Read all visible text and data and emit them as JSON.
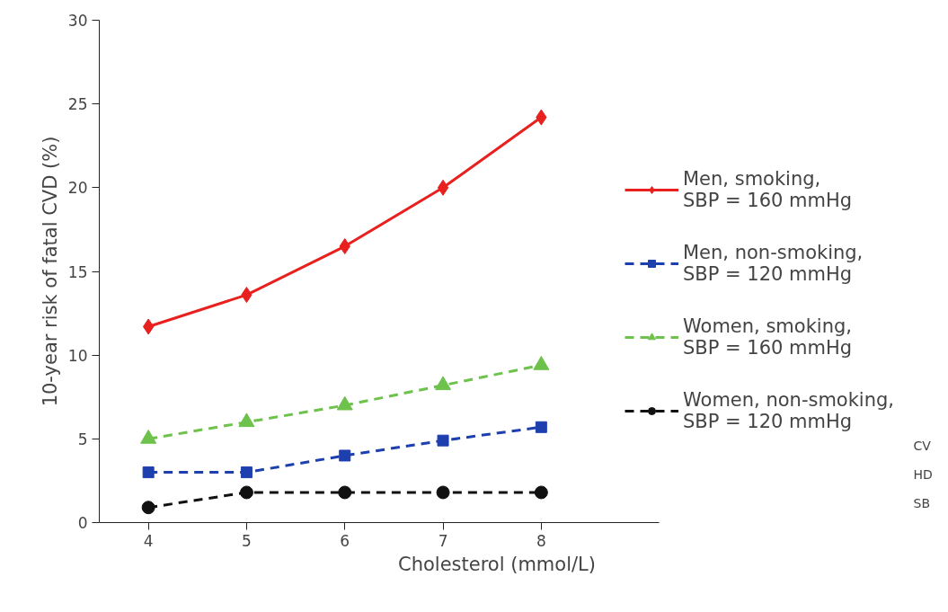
{
  "chart_data": {
    "type": "line",
    "xlabel": "Cholesterol (mmol/L)",
    "ylabel": "10-year risk of fatal CVD (%)",
    "x": [
      4,
      5,
      6,
      7,
      8
    ],
    "series": [
      {
        "name": "Men, smoking,\nSBP = 160 mmHg",
        "color": "#e8211f",
        "marker": "diamond",
        "line_style": "solid",
        "values": [
          11.7,
          13.6,
          16.5,
          20.0,
          24.2
        ]
      },
      {
        "name": "Men, non-smoking,\nSBP = 120 mmHg",
        "color": "#1e3fae",
        "marker": "square",
        "line_style": "dashed",
        "values": [
          3.0,
          3.0,
          4.0,
          4.9,
          5.7
        ]
      },
      {
        "name": "Women, smoking,\nSBP = 160 mmHg",
        "color": "#6cc24a",
        "marker": "triangle",
        "line_style": "dashed",
        "values": [
          5.0,
          6.0,
          7.0,
          8.2,
          9.4
        ]
      },
      {
        "name": "Women, non-smoking,\nSBP = 120 mmHg",
        "color": "#111111",
        "marker": "circle",
        "line_style": "dashed",
        "values": [
          0.9,
          1.8,
          1.8,
          1.8,
          1.8
        ]
      }
    ],
    "xlim": [
      3.5,
      9.2
    ],
    "ylim": [
      0,
      30
    ],
    "xticks": [
      4,
      5,
      6,
      7,
      8
    ],
    "yticks": [
      0,
      5,
      10,
      15,
      20,
      25,
      30
    ],
    "grid": false,
    "legend": "right",
    "annotations": [
      "CV",
      "HD",
      "SB"
    ]
  }
}
